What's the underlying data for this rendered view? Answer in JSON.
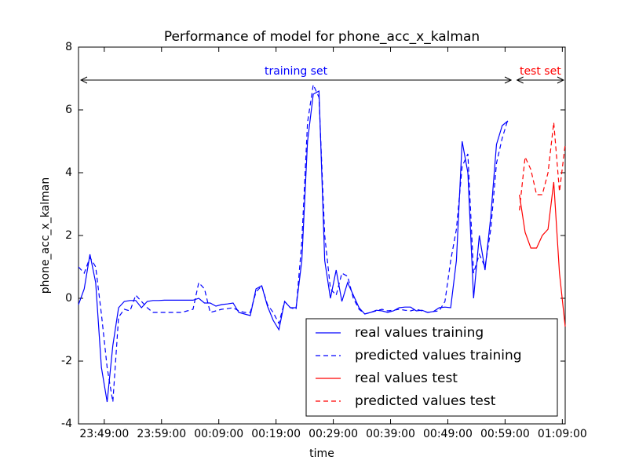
{
  "chart_data": {
    "type": "line",
    "title": "Performance of model for phone_acc_x_kalman",
    "x_label": "time",
    "y_label": "phone_acc_x_kalman",
    "xlim": [
      "23:44:30",
      "01:09:30"
    ],
    "xticks": [
      "23:49:00",
      "23:59:00",
      "00:09:00",
      "00:19:00",
      "00:29:00",
      "00:39:00",
      "00:49:00",
      "00:59:00",
      "01:09:00"
    ],
    "ylim": [
      -4,
      8
    ],
    "yticks": [
      -4,
      -2,
      0,
      2,
      4,
      6,
      8
    ],
    "legend": "lower right",
    "annotations": [
      {
        "text": "training set",
        "color": "#0000ff"
      },
      {
        "text": "test set",
        "color": "#ff0000"
      }
    ],
    "series": [
      {
        "name": "real values training",
        "color": "#0000ff",
        "linestyle": "solid",
        "x": [
          "23:44:30",
          "23:45:30",
          "23:46:30",
          "23:47:30",
          "23:48:30",
          "23:49:30",
          "23:50:30",
          "23:51:30",
          "23:52:30",
          "23:53:30",
          "23:54:30",
          "23:55:30",
          "23:56:30",
          "23:57:30",
          "23:58:30",
          "23:59:30",
          "00:00:30",
          "00:01:30",
          "00:02:30",
          "00:03:30",
          "00:04:30",
          "00:05:30",
          "00:06:30",
          "00:07:30",
          "00:08:30",
          "00:09:30",
          "00:10:30",
          "00:11:30",
          "00:12:30",
          "00:13:30",
          "00:14:30",
          "00:15:30",
          "00:16:30",
          "00:17:30",
          "00:18:30",
          "00:19:30",
          "00:20:30",
          "00:21:30",
          "00:22:30",
          "00:23:30",
          "00:24:30",
          "00:25:30",
          "00:26:30",
          "00:27:30",
          "00:28:30",
          "00:29:30",
          "00:30:30",
          "00:31:30",
          "00:32:30",
          "00:33:30",
          "00:34:30",
          "00:35:30",
          "00:36:30",
          "00:37:30",
          "00:38:30",
          "00:39:30",
          "00:40:30",
          "00:41:30",
          "00:42:30",
          "00:43:30",
          "00:44:30",
          "00:45:30",
          "00:46:30",
          "00:47:30",
          "00:48:30",
          "00:49:30",
          "00:50:30",
          "00:51:30",
          "00:52:30",
          "00:53:30",
          "00:54:30",
          "00:55:30",
          "00:56:30",
          "00:57:30",
          "00:58:30",
          "00:59:30"
        ],
        "values": [
          -0.2,
          0.3,
          1.4,
          0.5,
          -2.2,
          -3.3,
          -1.5,
          -0.3,
          -0.1,
          -0.07,
          -0.07,
          -0.3,
          -0.1,
          -0.07,
          -0.07,
          -0.06,
          -0.06,
          -0.06,
          -0.06,
          -0.06,
          -0.06,
          0.0,
          -0.15,
          -0.15,
          -0.25,
          -0.2,
          -0.18,
          -0.15,
          -0.45,
          -0.5,
          -0.55,
          0.3,
          0.4,
          -0.25,
          -0.7,
          -1.0,
          -0.1,
          -0.3,
          -0.3,
          1.2,
          5.0,
          6.5,
          6.6,
          1.2,
          0.0,
          0.9,
          -0.1,
          0.5,
          0.1,
          -0.3,
          -0.5,
          -0.45,
          -0.38,
          -0.4,
          -0.45,
          -0.4,
          -0.3,
          -0.28,
          -0.28,
          -0.4,
          -0.38,
          -0.45,
          -0.42,
          -0.3,
          -0.28,
          -0.3,
          1.2,
          5.0,
          4.0,
          0.0,
          2.0,
          0.9,
          2.6,
          4.9,
          5.5,
          5.65
        ]
      },
      {
        "name": "predicted values training",
        "color": "#0000ff",
        "linestyle": "dashed",
        "x": [
          "23:44:30",
          "23:45:30",
          "23:46:30",
          "23:47:30",
          "23:48:30",
          "23:49:30",
          "23:50:30",
          "23:51:30",
          "23:52:30",
          "23:53:30",
          "23:54:30",
          "23:55:30",
          "23:56:30",
          "23:57:30",
          "23:58:30",
          "23:59:30",
          "00:00:30",
          "00:01:30",
          "00:02:30",
          "00:03:30",
          "00:04:30",
          "00:05:30",
          "00:06:30",
          "00:07:30",
          "00:08:30",
          "00:09:30",
          "00:10:30",
          "00:11:30",
          "00:12:30",
          "00:13:30",
          "00:14:30",
          "00:15:30",
          "00:16:30",
          "00:17:30",
          "00:18:30",
          "00:19:30",
          "00:20:30",
          "00:21:30",
          "00:22:30",
          "00:23:30",
          "00:24:30",
          "00:25:30",
          "00:26:30",
          "00:27:30",
          "00:28:30",
          "00:29:30",
          "00:30:30",
          "00:31:30",
          "00:32:30",
          "00:33:30",
          "00:34:30",
          "00:35:30",
          "00:36:30",
          "00:37:30",
          "00:38:30",
          "00:39:30",
          "00:40:30",
          "00:41:30",
          "00:42:30",
          "00:43:30",
          "00:44:30",
          "00:45:30",
          "00:46:30",
          "00:47:30",
          "00:48:30",
          "00:49:30",
          "00:50:30",
          "00:51:30",
          "00:52:30",
          "00:53:30",
          "00:54:30",
          "00:55:30",
          "00:56:30",
          "00:57:30",
          "00:58:30",
          "00:59:30"
        ],
        "values": [
          1.0,
          0.8,
          1.3,
          1.0,
          -0.5,
          -2.2,
          -3.3,
          -0.6,
          -0.35,
          -0.4,
          0.1,
          -0.1,
          -0.3,
          -0.45,
          -0.45,
          -0.45,
          -0.45,
          -0.45,
          -0.45,
          -0.4,
          -0.35,
          0.5,
          0.3,
          -0.45,
          -0.4,
          -0.35,
          -0.33,
          -0.3,
          -0.4,
          -0.45,
          -0.45,
          0.2,
          0.4,
          -0.2,
          -0.45,
          -0.8,
          -0.1,
          -0.3,
          -0.35,
          1.8,
          5.6,
          6.8,
          6.4,
          2.0,
          0.3,
          0.1,
          0.8,
          0.7,
          0.0,
          -0.35,
          -0.5,
          -0.45,
          -0.4,
          -0.35,
          -0.4,
          -0.38,
          -0.35,
          -0.38,
          -0.4,
          -0.35,
          -0.4,
          -0.45,
          -0.42,
          -0.4,
          -0.1,
          1.2,
          2.2,
          4.2,
          4.6,
          0.8,
          1.4,
          1.0,
          2.2,
          4.3,
          5.1,
          5.7
        ]
      },
      {
        "name": "real values test",
        "color": "#ff0000",
        "linestyle": "solid",
        "x": [
          "01:01:30",
          "01:02:30",
          "01:03:30",
          "01:04:30",
          "01:05:30",
          "01:06:30",
          "01:07:30",
          "01:08:30",
          "01:09:30"
        ],
        "values": [
          3.3,
          2.1,
          1.6,
          1.6,
          2.0,
          2.2,
          3.7,
          0.8,
          -0.9
        ]
      },
      {
        "name": "predicted values test",
        "color": "#ff0000",
        "linestyle": "dashed",
        "x": [
          "01:01:30",
          "01:02:30",
          "01:03:30",
          "01:04:30",
          "01:05:30",
          "01:06:30",
          "01:07:30",
          "01:08:30",
          "01:09:30"
        ],
        "values": [
          2.8,
          4.5,
          4.1,
          3.3,
          3.3,
          4.0,
          5.6,
          3.4,
          4.9
        ]
      }
    ]
  }
}
